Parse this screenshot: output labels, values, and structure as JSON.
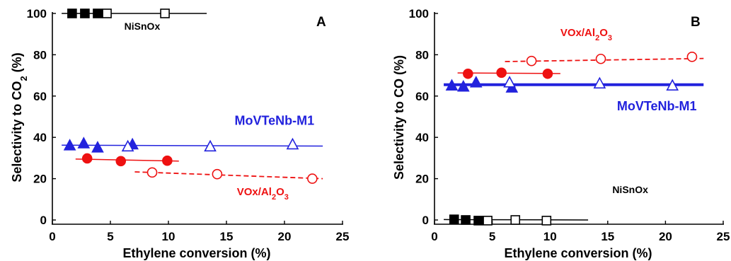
{
  "chart_data": [
    {
      "panel": "A",
      "type": "scatter",
      "xlabel": "Ethylene conversion (%)",
      "ylabel_main": "Selectivity to CO",
      "ylabel_sub": "2",
      "ylabel_tail": " (%)",
      "xlim": [
        0,
        25
      ],
      "ylim": [
        0,
        100
      ],
      "xticks": [
        "0",
        "5",
        "10",
        "15",
        "20",
        "25"
      ],
      "yticks": [
        "0",
        "20",
        "40",
        "60",
        "80",
        "100"
      ],
      "series": [
        {
          "name": "NiSnOx",
          "color": "#000000",
          "marker": "square",
          "points": [
            {
              "x": 1.7,
              "y": 100,
              "filled": true
            },
            {
              "x": 2.8,
              "y": 100,
              "filled": true
            },
            {
              "x": 3.9,
              "y": 100,
              "filled": true
            },
            {
              "x": 4.7,
              "y": 100,
              "filled": false
            },
            {
              "x": 9.7,
              "y": 100,
              "filled": false
            }
          ],
          "lines": [
            {
              "x0": 0.8,
              "y0": 100,
              "x1": 13.3,
              "y1": 100,
              "style": "solid"
            }
          ]
        },
        {
          "name": "MoVTeNb-M1",
          "color": "#2222dd",
          "marker": "triangle",
          "points": [
            {
              "x": 1.5,
              "y": 36,
              "filled": true
            },
            {
              "x": 2.7,
              "y": 37,
              "filled": true
            },
            {
              "x": 3.9,
              "y": 35,
              "filled": true
            },
            {
              "x": 6.9,
              "y": 36.5,
              "filled": true
            },
            {
              "x": 6.5,
              "y": 35.5,
              "filled": false
            },
            {
              "x": 13.6,
              "y": 35.5,
              "filled": false
            },
            {
              "x": 20.7,
              "y": 36.5,
              "filled": false
            }
          ],
          "lines": [
            {
              "x0": 0.8,
              "y0": 36.2,
              "x1": 23.3,
              "y1": 35.8,
              "style": "solid"
            }
          ]
        },
        {
          "name": "VOx/Al2O3",
          "color": "#ee1111",
          "marker": "circle",
          "points": [
            {
              "x": 3.0,
              "y": 29.8,
              "filled": true
            },
            {
              "x": 5.9,
              "y": 28.5,
              "filled": true
            },
            {
              "x": 9.9,
              "y": 28.7,
              "filled": true
            },
            {
              "x": 8.6,
              "y": 23.0,
              "filled": false
            },
            {
              "x": 14.2,
              "y": 22.2,
              "filled": false
            },
            {
              "x": 22.4,
              "y": 20.0,
              "filled": false
            }
          ],
          "lines": [
            {
              "x0": 2.0,
              "y0": 29.5,
              "x1": 10.9,
              "y1": 28.5,
              "style": "solid"
            },
            {
              "x0": 7.1,
              "y0": 23.3,
              "x1": 23.3,
              "y1": 20.0,
              "style": "dashed"
            }
          ]
        }
      ],
      "annotations": [
        {
          "key": "nisnox",
          "text": "NiSnOx",
          "sub": "",
          "tail": "",
          "color": "#000000",
          "x": 6.2,
          "y": 92.2,
          "anchor": "start",
          "size": 14
        },
        {
          "key": "movte",
          "text": "MoVTeNb-M1",
          "sub": "",
          "tail": "",
          "color": "#2222dd",
          "x": 15.7,
          "y": 46.0,
          "anchor": "start",
          "size": 18
        },
        {
          "key": "vox",
          "text": "VOx/Al",
          "sub": "2",
          "tail": "O",
          "sub2": "3",
          "color": "#ee1111",
          "x": 15.9,
          "y": 12.0,
          "anchor": "start",
          "size": 15
        }
      ]
    },
    {
      "panel": "B",
      "type": "scatter",
      "xlabel": "Ethylene conversion (%)",
      "ylabel_main": "Selectivity to CO",
      "ylabel_sub": "",
      "ylabel_tail": " (%)",
      "xlim": [
        0,
        25
      ],
      "ylim": [
        0,
        100
      ],
      "xticks": [
        "0",
        "5",
        "10",
        "15",
        "20",
        "25"
      ],
      "yticks": [
        "0",
        "20",
        "40",
        "60",
        "80",
        "100"
      ],
      "series": [
        {
          "name": "NiSnOx",
          "color": "#000000",
          "marker": "square",
          "points": [
            {
              "x": 1.7,
              "y": 0.3,
              "filled": true
            },
            {
              "x": 2.7,
              "y": 0.0,
              "filled": true
            },
            {
              "x": 3.8,
              "y": -0.3,
              "filled": true
            },
            {
              "x": 4.6,
              "y": -0.3,
              "filled": false
            },
            {
              "x": 7.0,
              "y": 0.0,
              "filled": false
            },
            {
              "x": 9.7,
              "y": -0.3,
              "filled": false
            }
          ],
          "lines": [
            {
              "x0": 0.8,
              "y0": 0.2,
              "x1": 13.3,
              "y1": 0.0,
              "style": "solid"
            }
          ]
        },
        {
          "name": "MoVTeNb-M1",
          "color": "#2222dd",
          "marker": "triangle",
          "points": [
            {
              "x": 1.5,
              "y": 65.0,
              "filled": true
            },
            {
              "x": 2.5,
              "y": 64.5,
              "filled": true
            },
            {
              "x": 3.6,
              "y": 66.5,
              "filled": true
            },
            {
              "x": 6.7,
              "y": 64.0,
              "filled": true
            },
            {
              "x": 6.5,
              "y": 66.5,
              "filled": false
            },
            {
              "x": 14.3,
              "y": 66.0,
              "filled": false
            },
            {
              "x": 20.6,
              "y": 65.0,
              "filled": false
            }
          ],
          "lines": [
            {
              "x0": 0.8,
              "y0": 65.5,
              "x1": 23.3,
              "y1": 65.5,
              "style": "solid",
              "width": 4
            }
          ]
        },
        {
          "name": "VOx/Al2O3",
          "color": "#ee1111",
          "marker": "circle",
          "points": [
            {
              "x": 2.9,
              "y": 70.8,
              "filled": true
            },
            {
              "x": 5.8,
              "y": 71.3,
              "filled": true
            },
            {
              "x": 9.8,
              "y": 70.8,
              "filled": true
            },
            {
              "x": 8.4,
              "y": 77.0,
              "filled": false
            },
            {
              "x": 14.4,
              "y": 78.0,
              "filled": false
            },
            {
              "x": 22.3,
              "y": 79.0,
              "filled": false
            }
          ],
          "lines": [
            {
              "x0": 2.0,
              "y0": 71.2,
              "x1": 10.9,
              "y1": 70.9,
              "style": "solid"
            },
            {
              "x0": 6.1,
              "y0": 76.7,
              "x1": 23.3,
              "y1": 78.2,
              "style": "dashed"
            }
          ]
        }
      ],
      "annotations": [
        {
          "key": "nisnox",
          "text": "NiSnOx",
          "sub": "",
          "tail": "",
          "color": "#000000",
          "x": 15.4,
          "y": 13.0,
          "anchor": "start",
          "size": 14
        },
        {
          "key": "movte",
          "text": "MoVTeNb-M1",
          "sub": "",
          "tail": "",
          "color": "#2222dd",
          "x": 15.8,
          "y": 53.0,
          "anchor": "start",
          "size": 18
        },
        {
          "key": "vox",
          "text": "VOx/Al",
          "sub": "2",
          "tail": "O",
          "sub2": "3",
          "color": "#ee1111",
          "x": 10.9,
          "y": 89.0,
          "anchor": "start",
          "size": 15
        }
      ]
    }
  ]
}
